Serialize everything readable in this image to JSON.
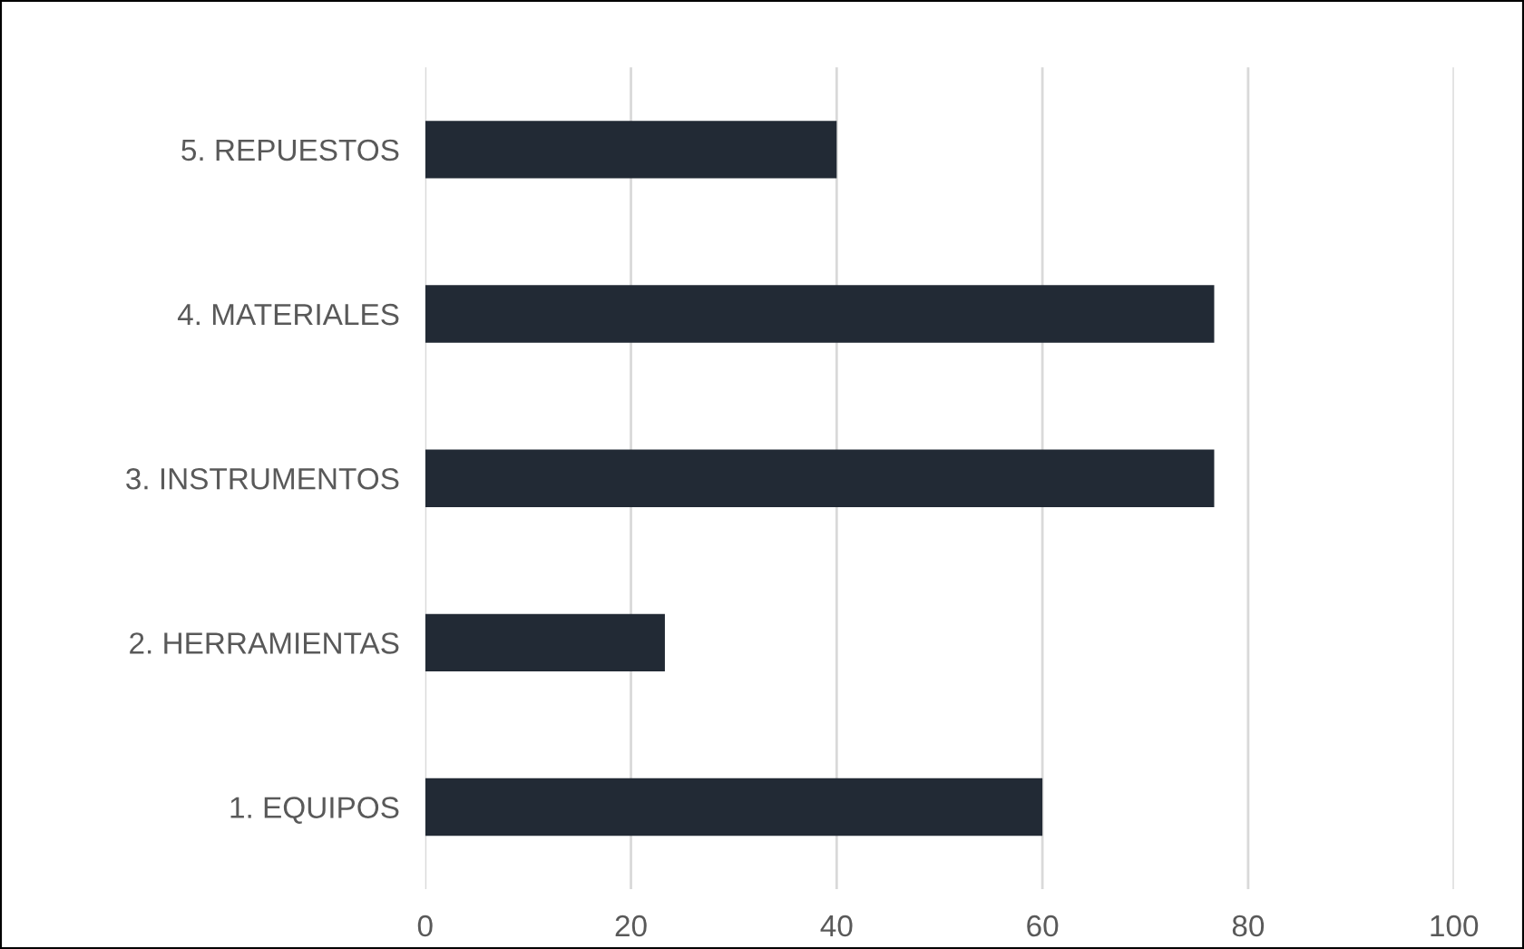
{
  "chart_data": {
    "type": "bar",
    "orientation": "horizontal",
    "categories": [
      "5. REPUESTOS",
      "4. MATERIALES",
      "3. INSTRUMENTOS",
      "2. HERRAMIENTAS",
      "1. EQUIPOS"
    ],
    "values": [
      40,
      76.7,
      76.7,
      23.3,
      60
    ],
    "color": "#222a35",
    "xlim": [
      0,
      100
    ],
    "xticks": [
      0,
      20,
      40,
      60,
      80,
      100
    ],
    "grid": "x",
    "legend": false
  }
}
